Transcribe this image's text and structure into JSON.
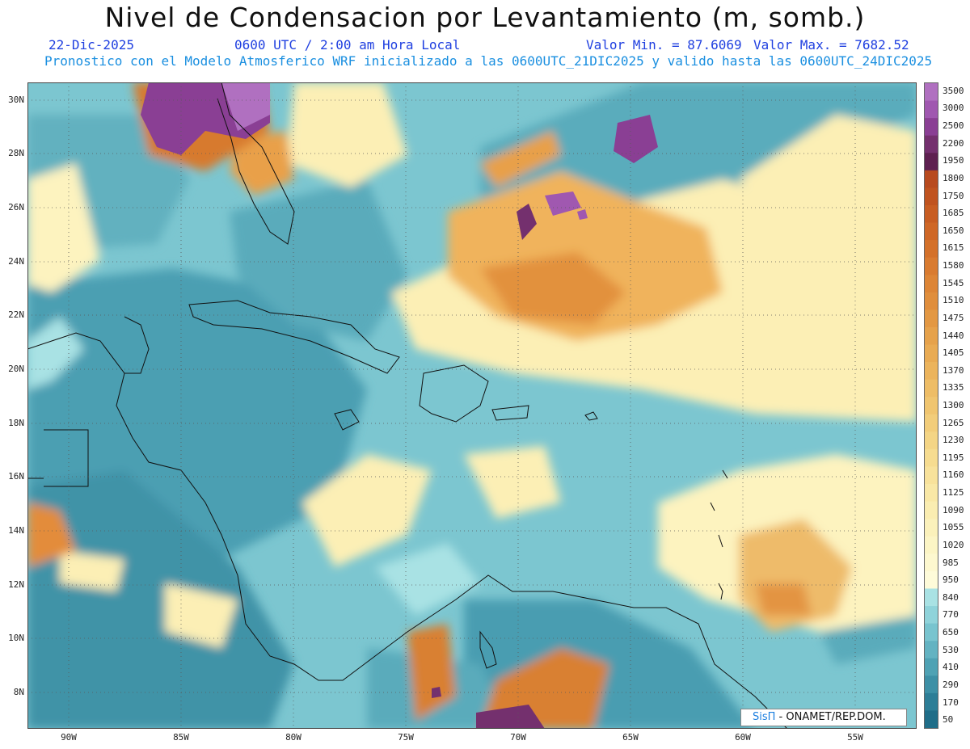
{
  "header": {
    "title": "Nivel de Condensacion por Levantamiento (m, somb.)",
    "date": "22-Dic-2025",
    "time": "0600 UTC / 2:00 am Hora Local",
    "min": "Valor Min. = 87.6069",
    "max": "Valor Max. = 7682.52",
    "description": "Pronostico con el Modelo Atmosferico WRF inicializado a las 0600UTC_21DIC2025 y valido hasta las  0600UTC_24DIC2025"
  },
  "axes": {
    "lat_labels": [
      "30N",
      "28N",
      "26N",
      "24N",
      "22N",
      "20N",
      "18N",
      "16N",
      "14N",
      "12N",
      "10N",
      "8N"
    ],
    "lon_labels": [
      "90W",
      "85W",
      "80W",
      "75W",
      "70W",
      "65W",
      "60W",
      "55W"
    ]
  },
  "colorbar": {
    "labels": [
      "3500",
      "3000",
      "2500",
      "2200",
      "1950",
      "1800",
      "1750",
      "1685",
      "1650",
      "1615",
      "1580",
      "1545",
      "1510",
      "1475",
      "1440",
      "1405",
      "1370",
      "1335",
      "1300",
      "1265",
      "1230",
      "1195",
      "1160",
      "1125",
      "1090",
      "1055",
      "1020",
      "985",
      "950",
      "840",
      "770",
      "650",
      "530",
      "410",
      "290",
      "170",
      "50"
    ],
    "colors": [
      "#b070c0",
      "#a058b0",
      "#8a3f94",
      "#74306e",
      "#5e2050",
      "#b84a1e",
      "#c0531f",
      "#c85d22",
      "#cf6726",
      "#d4712a",
      "#d97b30",
      "#dd8536",
      "#e08e3c",
      "#e39843",
      "#e6a24b",
      "#e9ab53",
      "#ecb45c",
      "#eebd66",
      "#f0c56f",
      "#f2cd7a",
      "#f4d585",
      "#f6dc90",
      "#f8e29b",
      "#f9e8a6",
      "#faedb1",
      "#fbf1bb",
      "#fcf5c5",
      "#fdf8cf",
      "#fefbd9",
      "#a9e2e4",
      "#8fd3da",
      "#78c4cf",
      "#63b3c2",
      "#4fa2b4",
      "#3d90a6",
      "#2d7e97",
      "#1f6d88"
    ]
  },
  "credit": {
    "sis": "SisΠ",
    "text": " - ONAMET/REP.DOM."
  }
}
